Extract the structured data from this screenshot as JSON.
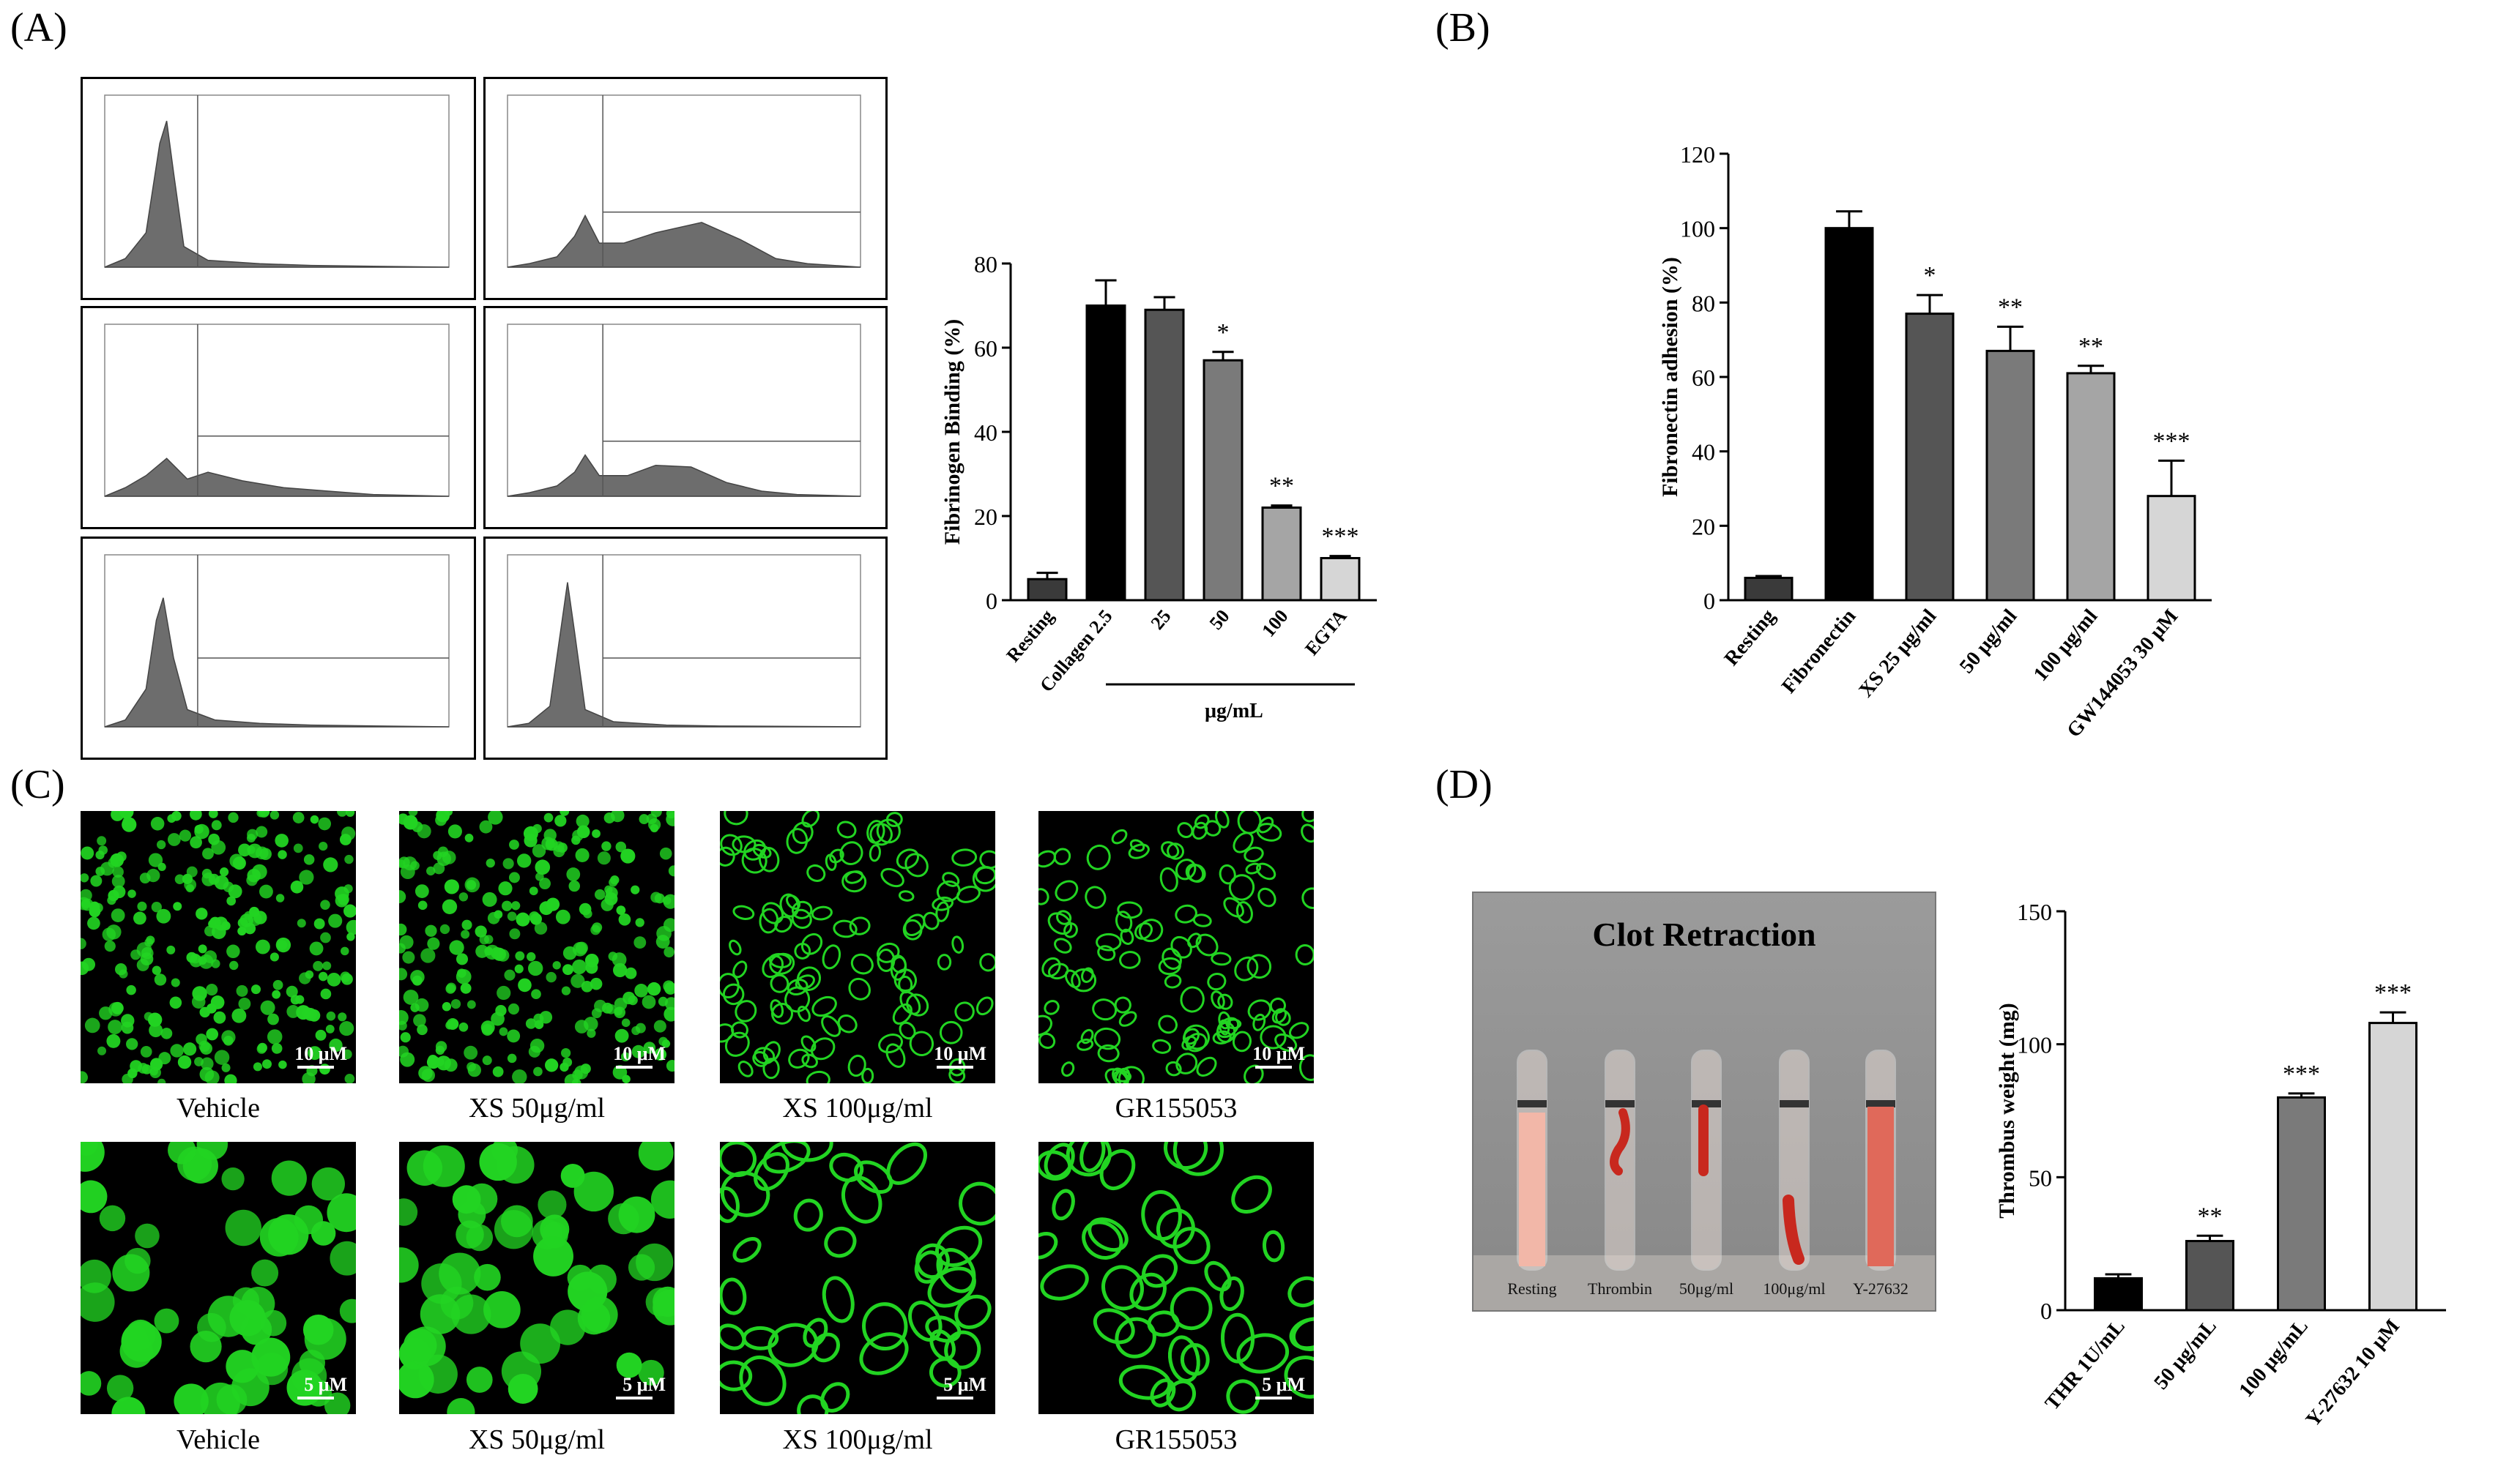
{
  "panels": {
    "a": "(A)",
    "b": "(B)",
    "c": "(C)",
    "d": "(D)"
  },
  "colors": {
    "bar_black": "#000000",
    "bar_dark": "#3a3a3a",
    "bar_mid": "#6b6b6b",
    "bar_light": "#9a9a9a",
    "bar_lighter": "#d6d6d6",
    "histogram_fill": "#6d6d6d",
    "fluorescence": "#22d422",
    "blood_red": "#c8281e"
  },
  "flow_cytometry": {
    "histogram_count": 6,
    "fill_icon": "histogram-icon"
  },
  "microscopy": {
    "row1_captions": [
      "Vehicle",
      "XS 50μg/ml",
      "XS 100μg/ml",
      "GR155053"
    ],
    "row2_captions": [
      "Vehicle",
      "XS 50μg/ml",
      "XS 100μg/ml",
      "GR155053"
    ],
    "row1_scale": "10 μM",
    "row2_scale": "5 μM"
  },
  "clot_photo": {
    "title": "Clot Retraction",
    "tube_labels": [
      "Resting",
      "Thrombin",
      "50μg/ml",
      "100μg/ml",
      "Y-27632"
    ]
  },
  "chart_data": [
    {
      "type": "bar",
      "panel": "A",
      "ylabel": "Fibrinogen Binding (%)",
      "ylim": [
        0,
        80
      ],
      "yticks": [
        "0",
        "20",
        "40",
        "60",
        "80"
      ],
      "categories": [
        "Resting",
        "Collagen 2.5",
        "25",
        "50",
        "100",
        "EGTA"
      ],
      "values": [
        5,
        70,
        69,
        57,
        22,
        10
      ],
      "errors": [
        1.5,
        6,
        3,
        2,
        0.5,
        0.5
      ],
      "significance": [
        "",
        "",
        "",
        "*",
        "**",
        "***"
      ],
      "group_label": "μg/mL",
      "bar_colors": [
        "#3a3a3a",
        "#000000",
        "#555555",
        "#7a7a7a",
        "#a5a5a5",
        "#d6d6d6"
      ]
    },
    {
      "type": "bar",
      "panel": "B",
      "ylabel": "Fibronectin adhesion (%)",
      "ylim": [
        0,
        120
      ],
      "yticks": [
        "0",
        "20",
        "40",
        "60",
        "80",
        "100",
        "120"
      ],
      "categories": [
        "Resting",
        "Fibronectin",
        "XS 25 μg/ml",
        "50 μg/ml",
        "100 μg/ml",
        "GW144053 30 μM"
      ],
      "values": [
        6,
        100,
        77,
        67,
        61,
        28
      ],
      "errors": [
        0.5,
        4.5,
        5,
        6.5,
        2,
        9.5
      ],
      "significance": [
        "",
        "",
        "*",
        "**",
        "**",
        "***"
      ],
      "bar_colors": [
        "#3a3a3a",
        "#000000",
        "#555555",
        "#7a7a7a",
        "#a5a5a5",
        "#d6d6d6"
      ]
    },
    {
      "type": "bar",
      "panel": "D",
      "ylabel": "Thrombus weight (mg)",
      "ylim": [
        0,
        150
      ],
      "yticks": [
        "0",
        "50",
        "100",
        "150"
      ],
      "categories": [
        "THR 1U/mL",
        "50 μg/mL",
        "100 μg/mL",
        "Y-27632 10 μM"
      ],
      "values": [
        12,
        26,
        80,
        108
      ],
      "errors": [
        1.5,
        2,
        1.5,
        4
      ],
      "significance": [
        "",
        "**",
        "***",
        "***"
      ],
      "bar_colors": [
        "#000000",
        "#555555",
        "#7a7a7a",
        "#d6d6d6"
      ]
    }
  ]
}
